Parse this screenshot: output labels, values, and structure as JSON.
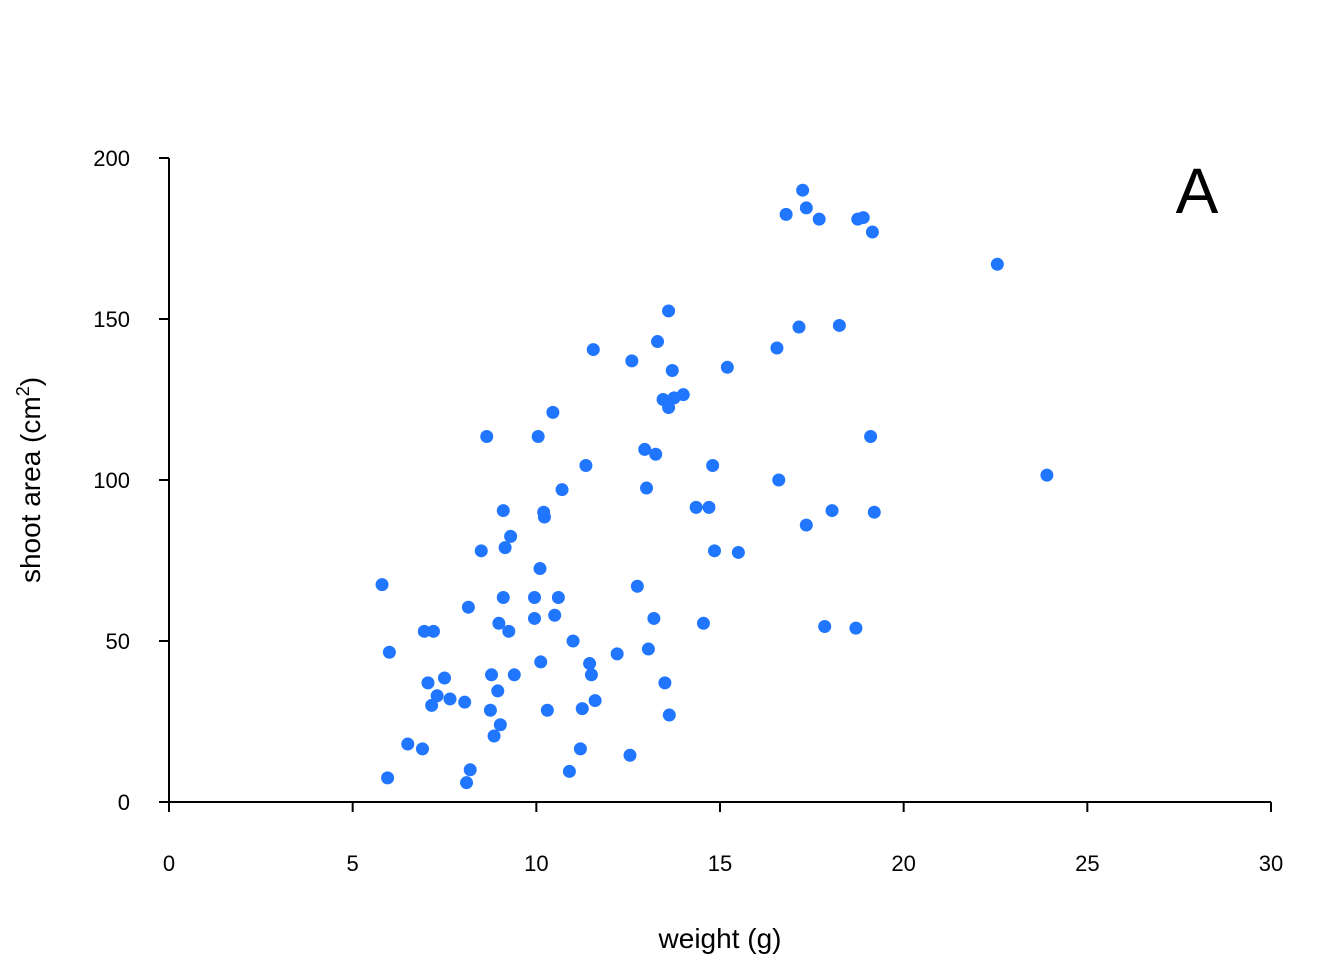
{
  "chart_data": {
    "type": "scatter",
    "title": "",
    "panel_label": "A",
    "xlabel": "weight (g)",
    "ylabel_main": "shoot area (cm",
    "ylabel_sup": "2",
    "ylabel_end": ")",
    "xlim": [
      0,
      30
    ],
    "ylim": [
      0,
      200
    ],
    "xticks": [
      0,
      5,
      10,
      15,
      20,
      25,
      30
    ],
    "yticks": [
      0,
      50,
      100,
      150,
      200
    ],
    "grid": false,
    "marker_color": "#2176FF",
    "points": [
      [
        5.8,
        67.5
      ],
      [
        6.0,
        46.5
      ],
      [
        5.95,
        7.5
      ],
      [
        6.5,
        18.0
      ],
      [
        6.9,
        16.5
      ],
      [
        6.95,
        53.0
      ],
      [
        7.05,
        37.0
      ],
      [
        7.15,
        30.0
      ],
      [
        7.2,
        53.0
      ],
      [
        7.3,
        33.0
      ],
      [
        7.5,
        38.5
      ],
      [
        7.65,
        32.0
      ],
      [
        8.05,
        31.0
      ],
      [
        8.1,
        6.0
      ],
      [
        8.15,
        60.5
      ],
      [
        8.2,
        10.0
      ],
      [
        8.5,
        78.0
      ],
      [
        8.65,
        113.5
      ],
      [
        8.75,
        28.5
      ],
      [
        8.78,
        39.5
      ],
      [
        8.85,
        20.5
      ],
      [
        8.95,
        34.5
      ],
      [
        8.98,
        55.5
      ],
      [
        9.02,
        24.0
      ],
      [
        9.1,
        63.5
      ],
      [
        9.1,
        90.5
      ],
      [
        9.15,
        79.0
      ],
      [
        9.25,
        53.0
      ],
      [
        9.3,
        82.5
      ],
      [
        9.4,
        39.5
      ],
      [
        9.95,
        63.5
      ],
      [
        9.95,
        57.0
      ],
      [
        10.05,
        113.5
      ],
      [
        10.1,
        72.5
      ],
      [
        10.12,
        43.5
      ],
      [
        10.2,
        90.0
      ],
      [
        10.22,
        88.5
      ],
      [
        10.3,
        28.5
      ],
      [
        10.45,
        121.0
      ],
      [
        10.5,
        58.0
      ],
      [
        10.6,
        63.5
      ],
      [
        10.7,
        97.0
      ],
      [
        10.9,
        9.5
      ],
      [
        11.0,
        50.0
      ],
      [
        11.2,
        16.5
      ],
      [
        11.25,
        29.0
      ],
      [
        11.35,
        104.5
      ],
      [
        11.45,
        43.0
      ],
      [
        11.5,
        39.5
      ],
      [
        11.55,
        140.5
      ],
      [
        11.6,
        31.5
      ],
      [
        12.2,
        46.0
      ],
      [
        12.55,
        14.5
      ],
      [
        12.6,
        137.0
      ],
      [
        12.75,
        67.0
      ],
      [
        12.95,
        109.5
      ],
      [
        13.0,
        97.5
      ],
      [
        13.05,
        47.5
      ],
      [
        13.2,
        57.0
      ],
      [
        13.25,
        108.0
      ],
      [
        13.3,
        143.0
      ],
      [
        13.45,
        125.0
      ],
      [
        13.5,
        37.0
      ],
      [
        13.6,
        152.5
      ],
      [
        13.6,
        122.5
      ],
      [
        13.62,
        27.0
      ],
      [
        13.7,
        134.0
      ],
      [
        13.75,
        125.5
      ],
      [
        14.0,
        126.5
      ],
      [
        14.35,
        91.5
      ],
      [
        14.55,
        55.5
      ],
      [
        14.7,
        91.5
      ],
      [
        14.8,
        104.5
      ],
      [
        14.85,
        78.0
      ],
      [
        15.2,
        135.0
      ],
      [
        15.5,
        77.5
      ],
      [
        16.55,
        141.0
      ],
      [
        16.6,
        100.0
      ],
      [
        16.8,
        182.5
      ],
      [
        17.15,
        147.5
      ],
      [
        17.25,
        190.0
      ],
      [
        17.35,
        184.5
      ],
      [
        17.35,
        86.0
      ],
      [
        17.7,
        181.0
      ],
      [
        17.85,
        54.5
      ],
      [
        18.05,
        90.5
      ],
      [
        18.25,
        148.0
      ],
      [
        18.7,
        54.0
      ],
      [
        18.75,
        181.0
      ],
      [
        18.9,
        181.5
      ],
      [
        19.1,
        113.5
      ],
      [
        19.15,
        177.0
      ],
      [
        19.2,
        90.0
      ],
      [
        22.55,
        167.0
      ],
      [
        23.9,
        101.5
      ]
    ]
  }
}
